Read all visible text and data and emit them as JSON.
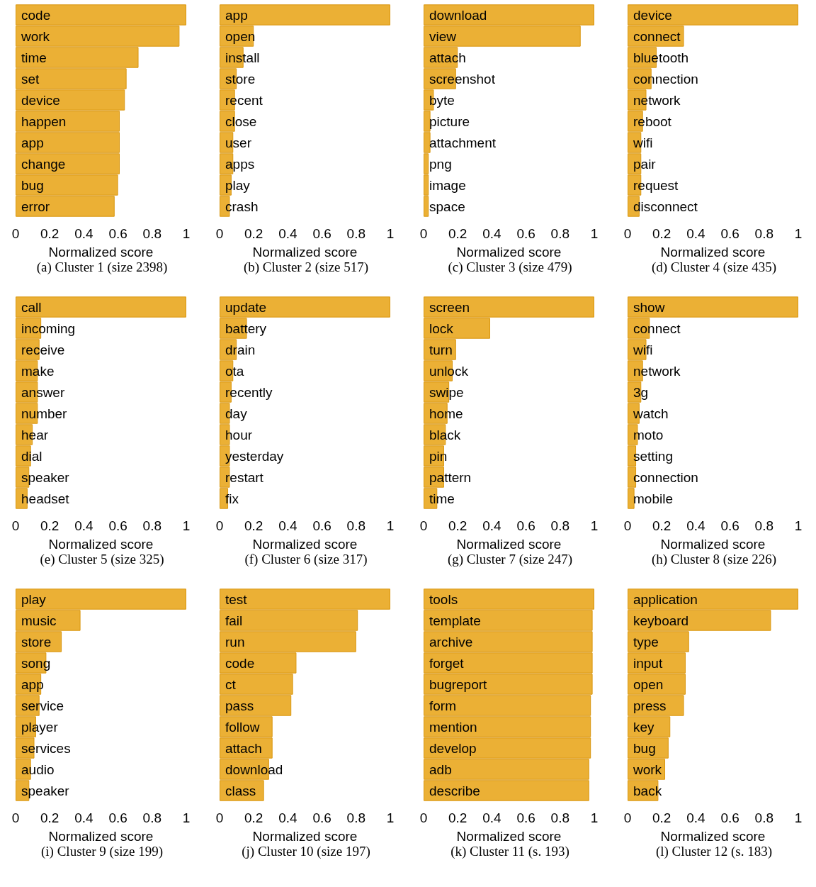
{
  "chart_data": [
    {
      "type": "bar",
      "orientation": "horizontal",
      "title": "(a) Cluster 1 (size 2398)",
      "xlabel": "Normalized score",
      "categories": [
        "code",
        "work",
        "time",
        "set",
        "device",
        "happen",
        "app",
        "change",
        "bug",
        "error"
      ],
      "values": [
        1,
        0.96,
        0.72,
        0.65,
        0.64,
        0.61,
        0.61,
        0.61,
        0.6,
        0.58
      ],
      "color": "#ebb035",
      "xlim": [
        0,
        1
      ],
      "xticks": [
        0,
        0.2,
        0.4,
        0.6,
        0.8,
        1
      ],
      "grid": false
    },
    {
      "type": "bar",
      "orientation": "horizontal",
      "title": "(b) Cluster 2 (size 517)",
      "xlabel": "Normalized score",
      "categories": [
        "app",
        "open",
        "install",
        "store",
        "recent",
        "close",
        "user",
        "apps",
        "play",
        "crash"
      ],
      "values": [
        1,
        0.2,
        0.14,
        0.1,
        0.09,
        0.09,
        0.08,
        0.08,
        0.07,
        0.06
      ],
      "color": "#ebb035",
      "xlim": [
        0,
        1
      ],
      "xticks": [
        0,
        0.2,
        0.4,
        0.6,
        0.8,
        1
      ],
      "grid": false
    },
    {
      "type": "bar",
      "orientation": "horizontal",
      "title": "(c) Cluster 3 (size 479)",
      "xlabel": "Normalized score",
      "categories": [
        "download",
        "view",
        "attach",
        "screenshot",
        "byte",
        "picture",
        "attachment",
        "png",
        "image",
        "space"
      ],
      "values": [
        1,
        0.92,
        0.2,
        0.19,
        0.06,
        0.04,
        0.04,
        0.03,
        0.03,
        0.03
      ],
      "color": "#ebb035",
      "xlim": [
        0,
        1
      ],
      "xticks": [
        0,
        0.2,
        0.4,
        0.6,
        0.8,
        1
      ],
      "grid": false
    },
    {
      "type": "bar",
      "orientation": "horizontal",
      "title": "(d) Cluster 4 (size 435)",
      "xlabel": "Normalized score",
      "categories": [
        "device",
        "connect",
        "bluetooth",
        "connection",
        "network",
        "reboot",
        "wifi",
        "pair",
        "request",
        "disconnect"
      ],
      "values": [
        1,
        0.33,
        0.17,
        0.14,
        0.11,
        0.09,
        0.08,
        0.08,
        0.08,
        0.07
      ],
      "color": "#ebb035",
      "xlim": [
        0,
        1
      ],
      "xticks": [
        0,
        0.2,
        0.4,
        0.6,
        0.8,
        1
      ],
      "grid": false
    },
    {
      "type": "bar",
      "orientation": "horizontal",
      "title": "(e) Cluster 5 (size 325)",
      "xlabel": "Normalized score",
      "categories": [
        "call",
        "incoming",
        "receive",
        "make",
        "answer",
        "number",
        "hear",
        "dial",
        "speaker",
        "headset"
      ],
      "values": [
        1,
        0.15,
        0.14,
        0.13,
        0.13,
        0.13,
        0.1,
        0.09,
        0.08,
        0.07
      ],
      "color": "#ebb035",
      "xlim": [
        0,
        1
      ],
      "xticks": [
        0,
        0.2,
        0.4,
        0.6,
        0.8,
        1
      ],
      "grid": false
    },
    {
      "type": "bar",
      "orientation": "horizontal",
      "title": "(f) Cluster 6 (size 317)",
      "xlabel": "Normalized score",
      "categories": [
        "update",
        "battery",
        "drain",
        "ota",
        "recently",
        "day",
        "hour",
        "yesterday",
        "restart",
        "fix"
      ],
      "values": [
        1,
        0.16,
        0.1,
        0.08,
        0.07,
        0.06,
        0.06,
        0.06,
        0.06,
        0.05
      ],
      "color": "#ebb035",
      "xlim": [
        0,
        1
      ],
      "xticks": [
        0,
        0.2,
        0.4,
        0.6,
        0.8,
        1
      ],
      "grid": false
    },
    {
      "type": "bar",
      "orientation": "horizontal",
      "title": "(g) Cluster 7 (size 247)",
      "xlabel": "Normalized score",
      "categories": [
        "screen",
        "lock",
        "turn",
        "unlock",
        "swipe",
        "home",
        "black",
        "pin",
        "pattern",
        "time"
      ],
      "values": [
        1,
        0.39,
        0.19,
        0.17,
        0.15,
        0.14,
        0.13,
        0.12,
        0.12,
        0.08
      ],
      "color": "#ebb035",
      "xlim": [
        0,
        1
      ],
      "xticks": [
        0,
        0.2,
        0.4,
        0.6,
        0.8,
        1
      ],
      "grid": false
    },
    {
      "type": "bar",
      "orientation": "horizontal",
      "title": "(h) Cluster 8 (size 226)",
      "xlabel": "Normalized score",
      "categories": [
        "show",
        "connect",
        "wifi",
        "network",
        "3g",
        "watch",
        "moto",
        "setting",
        "connection",
        "mobile"
      ],
      "values": [
        1,
        0.13,
        0.11,
        0.09,
        0.08,
        0.07,
        0.06,
        0.05,
        0.05,
        0.04
      ],
      "color": "#ebb035",
      "xlim": [
        0,
        1
      ],
      "xticks": [
        0,
        0.2,
        0.4,
        0.6,
        0.8,
        1
      ],
      "grid": false
    },
    {
      "type": "bar",
      "orientation": "horizontal",
      "title": "(i) Cluster 9 (size 199)",
      "xlabel": "Normalized score",
      "categories": [
        "play",
        "music",
        "store",
        "song",
        "app",
        "service",
        "player",
        "services",
        "audio",
        "speaker"
      ],
      "values": [
        1,
        0.38,
        0.27,
        0.18,
        0.15,
        0.14,
        0.12,
        0.11,
        0.09,
        0.08
      ],
      "color": "#ebb035",
      "xlim": [
        0,
        1
      ],
      "xticks": [
        0,
        0.2,
        0.4,
        0.6,
        0.8,
        1
      ],
      "grid": false
    },
    {
      "type": "bar",
      "orientation": "horizontal",
      "title": "(j) Cluster 10 (size 197)",
      "xlabel": "Normalized score",
      "categories": [
        "test",
        "fail",
        "run",
        "code",
        "ct",
        "pass",
        "follow",
        "attach",
        "download",
        "class"
      ],
      "values": [
        1,
        0.81,
        0.8,
        0.45,
        0.43,
        0.42,
        0.31,
        0.31,
        0.29,
        0.26
      ],
      "color": "#ebb035",
      "xlim": [
        0,
        1
      ],
      "xticks": [
        0,
        0.2,
        0.4,
        0.6,
        0.8,
        1
      ],
      "grid": false
    },
    {
      "type": "bar",
      "orientation": "horizontal",
      "title": "(k) Cluster 11 (s. 193)",
      "xlabel": "Normalized score",
      "categories": [
        "tools",
        "template",
        "archive",
        "forget",
        "bugreport",
        "form",
        "mention",
        "develop",
        "adb",
        "describe"
      ],
      "values": [
        1,
        0.99,
        0.99,
        0.99,
        0.99,
        0.98,
        0.98,
        0.98,
        0.97,
        0.97
      ],
      "color": "#ebb035",
      "xlim": [
        0,
        1
      ],
      "xticks": [
        0,
        0.2,
        0.4,
        0.6,
        0.8,
        1
      ],
      "grid": false
    },
    {
      "type": "bar",
      "orientation": "horizontal",
      "title": "(l) Cluster 12 (s. 183)",
      "xlabel": "Normalized score",
      "categories": [
        "application",
        "keyboard",
        "type",
        "input",
        "open",
        "press",
        "key",
        "bug",
        "work",
        "back"
      ],
      "values": [
        1,
        0.84,
        0.36,
        0.34,
        0.34,
        0.33,
        0.25,
        0.24,
        0.22,
        0.18
      ],
      "color": "#ebb035",
      "xlim": [
        0,
        1
      ],
      "xticks": [
        0,
        0.2,
        0.4,
        0.6,
        0.8,
        1
      ],
      "grid": false
    }
  ]
}
